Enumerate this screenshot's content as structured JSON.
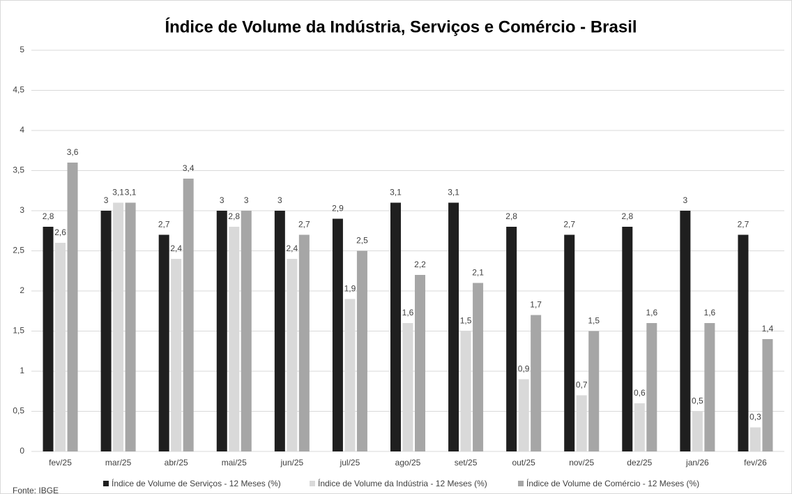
{
  "chart_data": {
    "type": "bar",
    "title": "Índice de Volume da Indústria, Serviços e Comércio - Brasil",
    "source": "Fonte: IBGE",
    "categories": [
      "fev/25",
      "mar/25",
      "abr/25",
      "mai/25",
      "jun/25",
      "jul/25",
      "ago/25",
      "set/25",
      "out/25",
      "nov/25",
      "dez/25",
      "jan/26",
      "fev/26"
    ],
    "series": [
      {
        "name": "Índice de Volume de Serviços - 12 Meses (%)",
        "color": "#1f1f1f",
        "values": [
          2.8,
          3,
          2.7,
          3,
          3,
          2.9,
          3.1,
          3.1,
          2.8,
          2.7,
          2.8,
          3,
          2.7
        ],
        "value_labels": [
          "2,8",
          "3",
          "2,7",
          "3",
          "3",
          "2,9",
          "3,1",
          "3,1",
          "2,8",
          "2,7",
          "2,8",
          "3",
          "2,7"
        ]
      },
      {
        "name": "Índice de Volume da Indústria - 12 Meses (%)",
        "color": "#d9d9d9",
        "values": [
          2.6,
          3.1,
          2.4,
          2.8,
          2.4,
          1.9,
          1.6,
          1.5,
          0.9,
          0.7,
          0.6,
          0.5,
          0.3
        ],
        "value_labels": [
          "2,6",
          "3,1",
          "2,4",
          "2,8",
          "2,4",
          "1,9",
          "1,6",
          "1,5",
          "0,9",
          "0,7",
          "0,6",
          "0,5",
          "0,3"
        ]
      },
      {
        "name": "Índice de Volume de Comércio - 12 Meses (%)",
        "color": "#a6a6a6",
        "values": [
          3.6,
          3.1,
          3.4,
          3,
          2.7,
          2.5,
          2.2,
          2.1,
          1.7,
          1.5,
          1.6,
          1.6,
          1.4
        ],
        "value_labels": [
          "3,6",
          "3,1",
          "3,4",
          "3",
          "2,7",
          "2,5",
          "2,2",
          "2,1",
          "1,7",
          "1,5",
          "1,6",
          "1,6",
          "1,4"
        ]
      }
    ],
    "ylim": [
      0,
      5
    ],
    "yticks": [
      0,
      {
        "value": 0.5,
        "label": "0,5"
      },
      1,
      {
        "value": 1.5,
        "label": "1,5"
      },
      2,
      {
        "value": 2.5,
        "label": "2,5"
      },
      3,
      {
        "value": 3.5,
        "label": "3,5"
      },
      4,
      {
        "value": 4.5,
        "label": "4,5"
      },
      5
    ],
    "grid": true,
    "legend": "bottom"
  }
}
